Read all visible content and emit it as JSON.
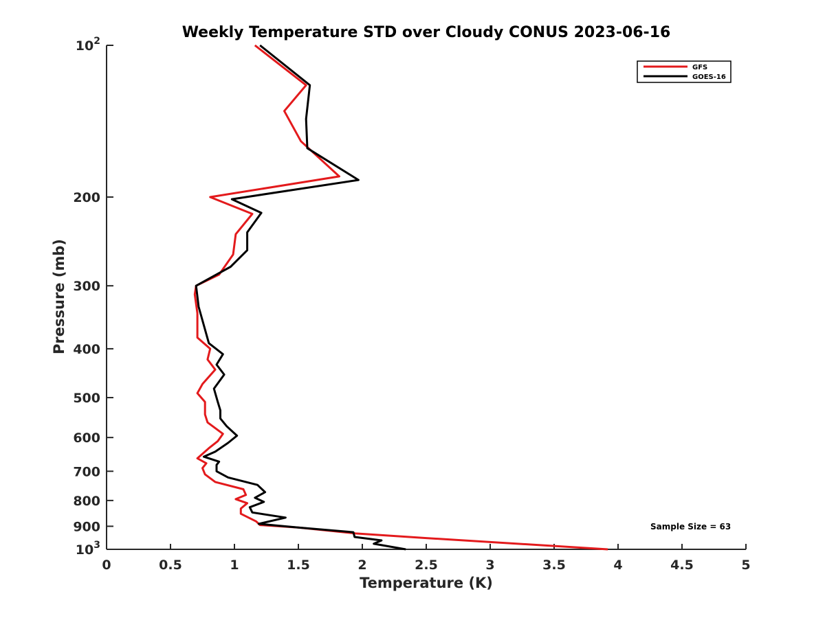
{
  "chart_data": {
    "type": "line",
    "title": "Weekly Temperature STD over Cloudy CONUS 2023-06-16",
    "xlabel": "Temperature (K)",
    "ylabel": "Pressure (mb)",
    "xlim": [
      0,
      5
    ],
    "ylim": [
      100,
      1000
    ],
    "yscale": "log",
    "y_reversed": true,
    "grid": false,
    "legend_location": "top-right",
    "x_ticks": [
      {
        "value": 0,
        "label": "0"
      },
      {
        "value": 0.5,
        "label": "0.5"
      },
      {
        "value": 1,
        "label": "1"
      },
      {
        "value": 1.5,
        "label": "1.5"
      },
      {
        "value": 2,
        "label": "2"
      },
      {
        "value": 2.5,
        "label": "2.5"
      },
      {
        "value": 3,
        "label": "3"
      },
      {
        "value": 3.5,
        "label": "3.5"
      },
      {
        "value": 4,
        "label": "4"
      },
      {
        "value": 4.5,
        "label": "4.5"
      },
      {
        "value": 5,
        "label": "5"
      }
    ],
    "y_ticks": [
      {
        "value": 100,
        "base": "10",
        "exp": "2"
      },
      {
        "value": 200,
        "label": "200"
      },
      {
        "value": 300,
        "label": "300"
      },
      {
        "value": 400,
        "label": "400"
      },
      {
        "value": 500,
        "label": "500"
      },
      {
        "value": 600,
        "label": "600"
      },
      {
        "value": 700,
        "label": "700"
      },
      {
        "value": 800,
        "label": "800"
      },
      {
        "value": 900,
        "label": "900"
      },
      {
        "value": 1000,
        "base": "10",
        "exp": "3"
      }
    ],
    "annotation": "Sample Size = 63",
    "series": [
      {
        "name": "GFS",
        "color": "#e31a1c",
        "points": [
          [
            1.16,
            100
          ],
          [
            1.56,
            120
          ],
          [
            1.39,
            135
          ],
          [
            1.52,
            155
          ],
          [
            1.82,
            182
          ],
          [
            0.81,
            200
          ],
          [
            1.14,
            216
          ],
          [
            1.01,
            237
          ],
          [
            0.99,
            260
          ],
          [
            0.88,
            285
          ],
          [
            0.7,
            300
          ],
          [
            0.69,
            312
          ],
          [
            0.71,
            340
          ],
          [
            0.71,
            360
          ],
          [
            0.71,
            380
          ],
          [
            0.81,
            400
          ],
          [
            0.79,
            420
          ],
          [
            0.85,
            440
          ],
          [
            0.75,
            470
          ],
          [
            0.71,
            490
          ],
          [
            0.77,
            510
          ],
          [
            0.77,
            540
          ],
          [
            0.79,
            560
          ],
          [
            0.91,
            590
          ],
          [
            0.87,
            610
          ],
          [
            0.8,
            630
          ],
          [
            0.71,
            660
          ],
          [
            0.78,
            675
          ],
          [
            0.75,
            690
          ],
          [
            0.77,
            710
          ],
          [
            0.85,
            735
          ],
          [
            1.07,
            760
          ],
          [
            1.09,
            780
          ],
          [
            1.01,
            795
          ],
          [
            1.1,
            810
          ],
          [
            1.05,
            830
          ],
          [
            1.05,
            850
          ],
          [
            1.17,
            880
          ],
          [
            1.2,
            895
          ],
          [
            1.5,
            905
          ],
          [
            1.95,
            930
          ],
          [
            2.5,
            950
          ],
          [
            3.92,
            1000
          ]
        ]
      },
      {
        "name": "GOES-16",
        "color": "#000000",
        "points": [
          [
            1.2,
            100
          ],
          [
            1.59,
            120
          ],
          [
            1.56,
            140
          ],
          [
            1.57,
            160
          ],
          [
            1.97,
            185
          ],
          [
            0.98,
            202
          ],
          [
            1.21,
            215
          ],
          [
            1.1,
            235
          ],
          [
            1.1,
            255
          ],
          [
            0.97,
            275
          ],
          [
            0.7,
            300
          ],
          [
            0.72,
            330
          ],
          [
            0.8,
            390
          ],
          [
            0.91,
            410
          ],
          [
            0.86,
            430
          ],
          [
            0.92,
            450
          ],
          [
            0.84,
            480
          ],
          [
            0.87,
            510
          ],
          [
            0.89,
            530
          ],
          [
            0.89,
            550
          ],
          [
            0.94,
            570
          ],
          [
            1.02,
            595
          ],
          [
            0.95,
            615
          ],
          [
            0.85,
            640
          ],
          [
            0.76,
            655
          ],
          [
            0.88,
            670
          ],
          [
            0.86,
            680
          ],
          [
            0.86,
            700
          ],
          [
            0.95,
            720
          ],
          [
            1.18,
            745
          ],
          [
            1.24,
            770
          ],
          [
            1.16,
            790
          ],
          [
            1.23,
            805
          ],
          [
            1.12,
            825
          ],
          [
            1.14,
            845
          ],
          [
            1.4,
            865
          ],
          [
            1.19,
            890
          ],
          [
            1.5,
            905
          ],
          [
            1.93,
            925
          ],
          [
            1.94,
            945
          ],
          [
            2.15,
            960
          ],
          [
            2.09,
            975
          ],
          [
            2.34,
            1000
          ]
        ]
      }
    ]
  }
}
